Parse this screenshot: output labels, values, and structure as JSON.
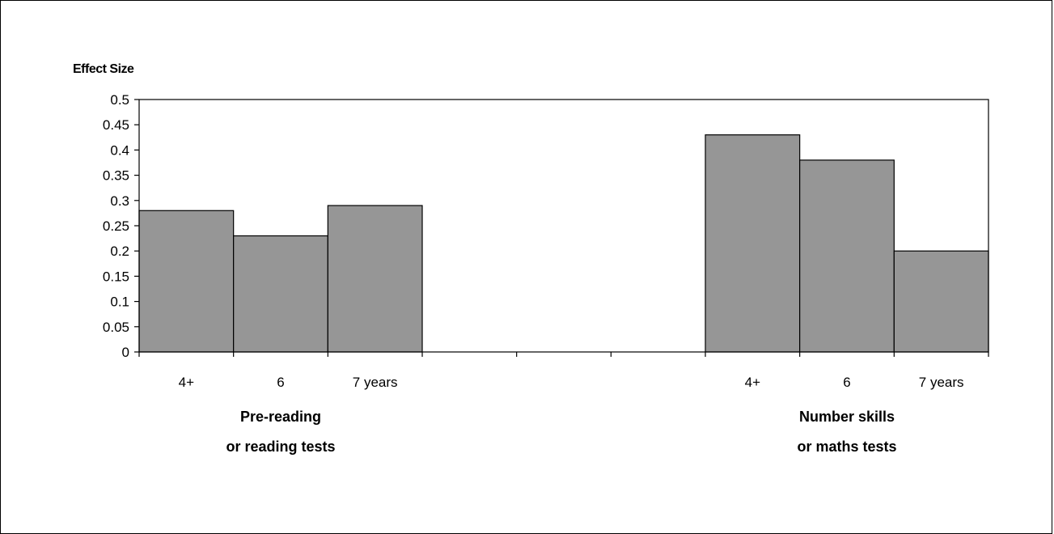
{
  "chart_data": {
    "type": "bar",
    "ylabel": "Effect Size",
    "xlabel": "",
    "title": "",
    "ylim": [
      0,
      0.5
    ],
    "yticks": [
      "0",
      "0.05",
      "0.1",
      "0.15",
      "0.2",
      "0.25",
      "0.3",
      "0.35",
      "0.4",
      "0.45",
      "0.5"
    ],
    "grid": false,
    "legend": "none",
    "bar_color": "#969696",
    "groups": [
      {
        "label_line1": "Pre-reading",
        "label_line2": "or reading tests",
        "categories": [
          "4+",
          "6",
          "7 years"
        ],
        "values": [
          0.28,
          0.23,
          0.29
        ]
      },
      {
        "label_line1": "Number skills",
        "label_line2": "or maths tests",
        "categories": [
          "4+",
          "6",
          "7 years"
        ],
        "values": [
          0.43,
          0.38,
          0.2
        ]
      }
    ]
  }
}
